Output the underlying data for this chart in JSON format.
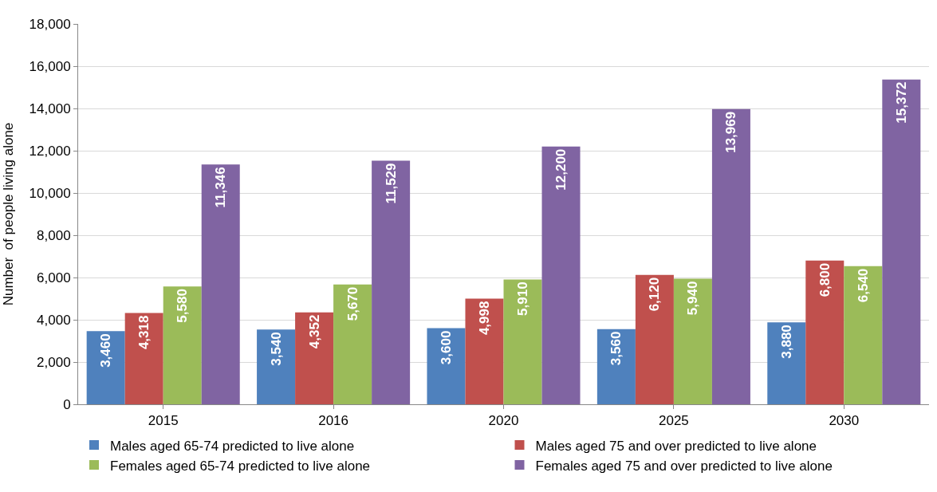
{
  "chart_data": {
    "type": "bar",
    "ylabel": "Number  of people living alone",
    "categories": [
      "2015",
      "2016",
      "2020",
      "2025",
      "2030"
    ],
    "series": [
      {
        "name": "Males aged 65-74 predicted to live alone",
        "color": "#4f81bd",
        "values": [
          3460,
          3540,
          3600,
          3560,
          3880
        ],
        "value_labels": [
          "3,460",
          "3,540",
          "3,600",
          "3,560",
          "3,880"
        ]
      },
      {
        "name": "Males aged 75 and over predicted to live alone",
        "color": "#c0504d",
        "values": [
          4318,
          4352,
          4998,
          6120,
          6800
        ],
        "value_labels": [
          "4,318",
          "4,352",
          "4,998",
          "6,120",
          "6,800"
        ]
      },
      {
        "name": "Females aged 65-74 predicted to live alone",
        "color": "#9bbb59",
        "values": [
          5580,
          5670,
          5910,
          5940,
          6540
        ],
        "value_labels": [
          "5,580",
          "5,670",
          "5,910",
          "5,940",
          "6,540"
        ]
      },
      {
        "name": "Females aged 75 and over predicted to live alone",
        "color": "#8064a2",
        "values": [
          11346,
          11529,
          12200,
          13969,
          15372
        ],
        "value_labels": [
          "11,346",
          "11,529",
          "12,200",
          "13,969",
          "15,372"
        ]
      }
    ],
    "ylim": [
      0,
      18000
    ],
    "yticks": [
      {
        "value": 0,
        "label": "0"
      },
      {
        "value": 2000,
        "label": "2,000"
      },
      {
        "value": 4000,
        "label": "4,000"
      },
      {
        "value": 6000,
        "label": "6,000"
      },
      {
        "value": 8000,
        "label": "8,000"
      },
      {
        "value": 10000,
        "label": "10,000"
      },
      {
        "value": 12000,
        "label": "12,000"
      },
      {
        "value": 14000,
        "label": "14,000"
      },
      {
        "value": 16000,
        "label": "16,000"
      },
      {
        "value": 18000,
        "label": "18,000"
      }
    ],
    "grid": "y",
    "legend": "bottom"
  }
}
